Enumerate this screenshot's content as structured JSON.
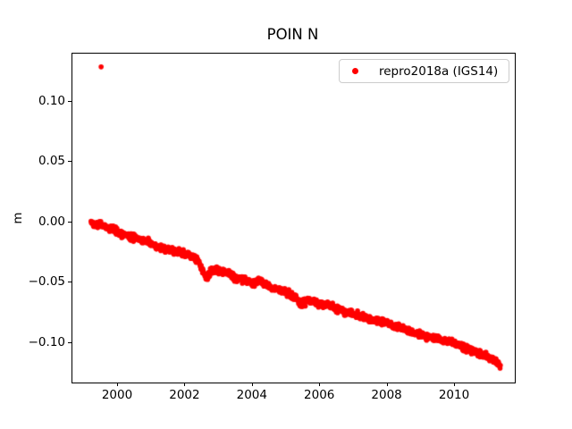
{
  "figure": {
    "background": "#ffffff",
    "text_color": "#000000"
  },
  "chart_data": {
    "type": "scatter",
    "title": "POIN N",
    "xlabel": "",
    "ylabel": "m",
    "xlim": [
      1998.647,
      2011.777
    ],
    "ylim": [
      -0.1326,
      0.14
    ],
    "grid": false,
    "xticks": [
      {
        "value": 2000,
        "label": "2000"
      },
      {
        "value": 2002,
        "label": "2002"
      },
      {
        "value": 2004,
        "label": "2004"
      },
      {
        "value": 2006,
        "label": "2006"
      },
      {
        "value": 2008,
        "label": "2008"
      },
      {
        "value": 2010,
        "label": "2010"
      }
    ],
    "yticks": [
      {
        "value": 0.1,
        "label": "0.10"
      },
      {
        "value": 0.05,
        "label": "0.05"
      },
      {
        "value": 0.0,
        "label": "0.00"
      },
      {
        "value": -0.05,
        "label": "−0.05"
      },
      {
        "value": -0.1,
        "label": "−0.10"
      }
    ],
    "legend": {
      "position": "upper right",
      "entries": [
        {
          "label": "repro2018a (IGS14)",
          "color": "#ff0000",
          "marker": "dot"
        }
      ]
    },
    "series": [
      {
        "name": "repro2018a (IGS14)",
        "color": "#ff0000",
        "marker": "dot",
        "marker_radius_px": 2.8,
        "x_start": 1999.2,
        "x_end": 2011.35,
        "sample_step_years": 0.01,
        "noise_sigma": 0.0014,
        "random_seed": 42,
        "trend_anchors": [
          [
            1999.2,
            0.0
          ],
          [
            1999.4,
            -0.0015
          ],
          [
            1999.6,
            -0.003
          ],
          [
            1999.8,
            -0.005
          ],
          [
            2000.0,
            -0.0075
          ],
          [
            2000.2,
            -0.011
          ],
          [
            2000.45,
            -0.012
          ],
          [
            2000.7,
            -0.0145
          ],
          [
            2001.0,
            -0.018
          ],
          [
            2001.3,
            -0.0215
          ],
          [
            2001.6,
            -0.023
          ],
          [
            2001.9,
            -0.0255
          ],
          [
            2002.1,
            -0.027
          ],
          [
            2002.35,
            -0.031
          ],
          [
            2002.55,
            -0.042
          ],
          [
            2002.65,
            -0.046
          ],
          [
            2002.75,
            -0.041
          ],
          [
            2002.95,
            -0.0395
          ],
          [
            2003.2,
            -0.041
          ],
          [
            2003.45,
            -0.045
          ],
          [
            2003.7,
            -0.047
          ],
          [
            2004.0,
            -0.05
          ],
          [
            2004.2,
            -0.048
          ],
          [
            2004.5,
            -0.0535
          ],
          [
            2004.8,
            -0.056
          ],
          [
            2005.0,
            -0.058
          ],
          [
            2005.25,
            -0.0615
          ],
          [
            2005.45,
            -0.068
          ],
          [
            2005.6,
            -0.0645
          ],
          [
            2005.85,
            -0.066
          ],
          [
            2006.1,
            -0.068
          ],
          [
            2006.4,
            -0.0705
          ],
          [
            2006.7,
            -0.0735
          ],
          [
            2007.0,
            -0.0757
          ],
          [
            2007.3,
            -0.0785
          ],
          [
            2007.6,
            -0.0805
          ],
          [
            2007.9,
            -0.0825
          ],
          [
            2008.1,
            -0.0845
          ],
          [
            2008.4,
            -0.0875
          ],
          [
            2008.75,
            -0.0915
          ],
          [
            2009.0,
            -0.0933
          ],
          [
            2009.3,
            -0.0952
          ],
          [
            2009.6,
            -0.0975
          ],
          [
            2009.9,
            -0.099
          ],
          [
            2010.1,
            -0.1015
          ],
          [
            2010.35,
            -0.1045
          ],
          [
            2010.6,
            -0.1065
          ],
          [
            2010.85,
            -0.11
          ],
          [
            2011.05,
            -0.113
          ],
          [
            2011.2,
            -0.1145
          ],
          [
            2011.35,
            -0.119
          ]
        ],
        "outlier_points": [
          [
            1999.5,
            0.129
          ]
        ]
      }
    ]
  }
}
